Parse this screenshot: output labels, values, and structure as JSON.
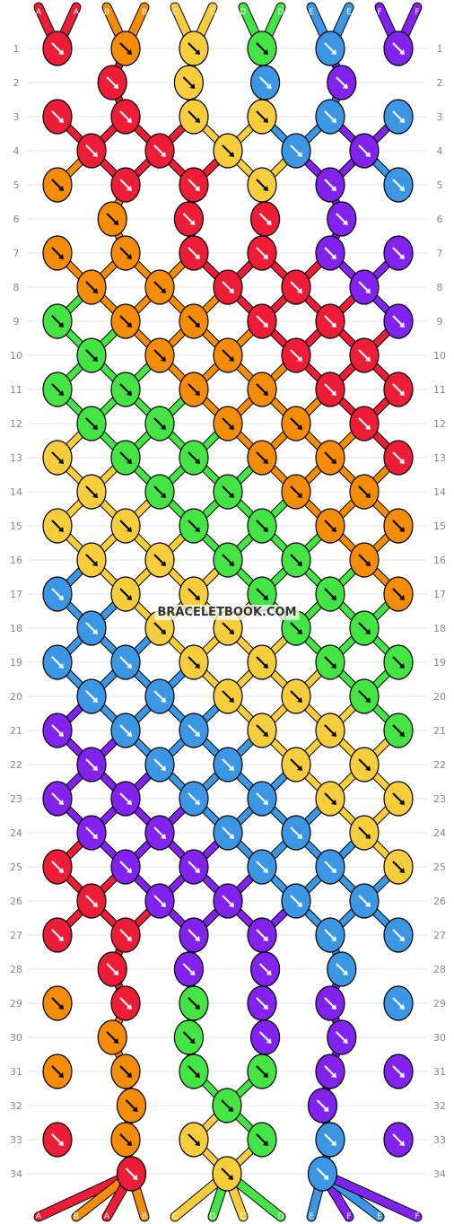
{
  "watermark": "BRACELETBOOK.COM",
  "colors": {
    "R": "#ee1d37",
    "O": "#f48c06",
    "Y": "#f7cd3c",
    "G": "#43e444",
    "B": "#3b97e4",
    "P": "#8122ee"
  },
  "strands_top": [
    {
      "label": "A",
      "color": "R"
    },
    {
      "label": "A",
      "color": "R"
    },
    {
      "label": "B",
      "color": "O"
    },
    {
      "label": "B",
      "color": "O"
    },
    {
      "label": "C",
      "color": "Y"
    },
    {
      "label": "C",
      "color": "Y"
    },
    {
      "label": "D",
      "color": "G"
    },
    {
      "label": "D",
      "color": "G"
    },
    {
      "label": "E",
      "color": "B"
    },
    {
      "label": "E",
      "color": "B"
    },
    {
      "label": "F",
      "color": "P"
    },
    {
      "label": "F",
      "color": "P"
    }
  ],
  "strands_bottom": [
    {
      "label": "A",
      "color": "R"
    },
    {
      "label": "B",
      "color": "O"
    },
    {
      "label": "A",
      "color": "R"
    },
    {
      "label": "B",
      "color": "O"
    },
    {
      "label": "C",
      "color": "Y"
    },
    {
      "label": "D",
      "color": "G"
    },
    {
      "label": "C",
      "color": "Y"
    },
    {
      "label": "D",
      "color": "G"
    },
    {
      "label": "E",
      "color": "B"
    },
    {
      "label": "F",
      "color": "P"
    },
    {
      "label": "E",
      "color": "B"
    },
    {
      "label": "F",
      "color": "P"
    }
  ],
  "row_numbers": [
    "1",
    "2",
    "3",
    "4",
    "5",
    "6",
    "7",
    "8",
    "9",
    "10",
    "11",
    "12",
    "13",
    "14",
    "15",
    "16",
    "17",
    "18",
    "19",
    "20",
    "21",
    "22",
    "23",
    "24",
    "25",
    "26",
    "27",
    "28",
    "29",
    "30",
    "31",
    "32",
    "33",
    "34"
  ],
  "knot_rows": [
    [
      "R",
      "O",
      "Y",
      "G",
      "B",
      "P"
    ],
    [
      "R",
      "Y",
      "B",
      "P"
    ],
    [
      "R",
      "R",
      "Y",
      "Y",
      "B",
      "B"
    ],
    [
      "R",
      "R",
      "Y",
      "B",
      "P"
    ],
    [
      "O",
      "R",
      "R",
      "Y",
      "P",
      "B"
    ],
    [
      "O",
      "R",
      "R",
      "P"
    ],
    [
      "O",
      "O",
      "R",
      "R",
      "P",
      "P"
    ],
    [
      "O",
      "O",
      "R",
      "R",
      "P"
    ],
    [
      "G",
      "O",
      "O",
      "R",
      "R",
      "P"
    ],
    [
      "G",
      "O",
      "O",
      "R",
      "R"
    ],
    [
      "G",
      "G",
      "O",
      "O",
      "R",
      "R"
    ],
    [
      "G",
      "G",
      "O",
      "O",
      "R"
    ],
    [
      "Y",
      "G",
      "G",
      "O",
      "O",
      "R"
    ],
    [
      "Y",
      "G",
      "G",
      "O",
      "O"
    ],
    [
      "Y",
      "Y",
      "G",
      "G",
      "O",
      "O"
    ],
    [
      "Y",
      "Y",
      "G",
      "G",
      "O"
    ],
    [
      "B",
      "Y",
      "Y",
      "G",
      "G",
      "O"
    ],
    [
      "B",
      "Y",
      "Y",
      "G",
      "G"
    ],
    [
      "B",
      "B",
      "Y",
      "Y",
      "G",
      "G"
    ],
    [
      "B",
      "B",
      "Y",
      "Y",
      "G"
    ],
    [
      "P",
      "B",
      "B",
      "Y",
      "Y",
      "G"
    ],
    [
      "P",
      "B",
      "B",
      "Y",
      "Y"
    ],
    [
      "P",
      "P",
      "B",
      "B",
      "Y",
      "Y"
    ],
    [
      "P",
      "P",
      "B",
      "B",
      "Y"
    ],
    [
      "R",
      "P",
      "P",
      "B",
      "B",
      "Y"
    ],
    [
      "R",
      "P",
      "P",
      "B",
      "B"
    ],
    [
      "R",
      "R",
      "P",
      "P",
      "B",
      "B"
    ],
    [
      "R",
      "P",
      "P",
      "B"
    ],
    [
      "O",
      "R",
      "G",
      "P",
      "P",
      "B"
    ],
    [
      "O",
      "G",
      "P",
      "P"
    ],
    [
      "O",
      "O",
      "G",
      "G",
      "P",
      "P"
    ],
    [
      "O",
      "G",
      "P"
    ],
    [
      "R",
      "O",
      "Y",
      "G",
      "B",
      "P"
    ],
    [
      "R",
      "Y",
      "B"
    ]
  ]
}
